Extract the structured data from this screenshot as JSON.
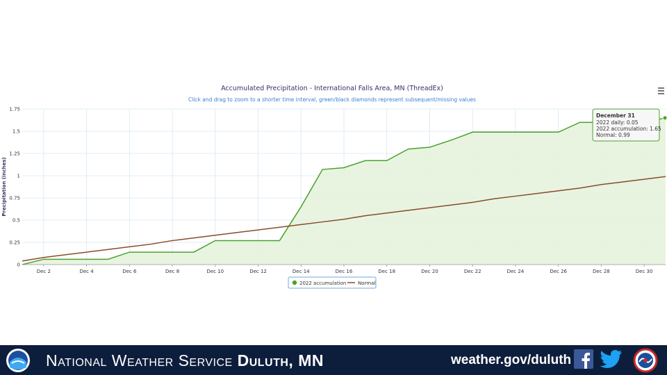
{
  "chart_data": {
    "type": "line",
    "title": "Accumulated Precipitation - International Falls Area, MN (ThreadEx)",
    "subtitle": "Click and drag to zoom to a shorter time interval, green/black diamonds represent subsequent/missing values",
    "ylabel": "Precipitation (inches)",
    "xlabel": "",
    "xlim": [
      1,
      31
    ],
    "ylim": [
      0,
      1.75
    ],
    "yticks": [
      0,
      0.25,
      0.5,
      0.75,
      1,
      1.25,
      1.5,
      1.75
    ],
    "ytick_labels": [
      "0",
      "0.25",
      "0.5",
      "0.75",
      "1",
      "1.25",
      "1.5",
      "1.75"
    ],
    "xticks": [
      2,
      4,
      6,
      8,
      10,
      12,
      14,
      16,
      18,
      20,
      22,
      24,
      26,
      28,
      30
    ],
    "xtick_labels": [
      "Dec 2",
      "Dec 4",
      "Dec 6",
      "Dec 8",
      "Dec 10",
      "Dec 12",
      "Dec 14",
      "Dec 16",
      "Dec 18",
      "Dec 20",
      "Dec 22",
      "Dec 24",
      "Dec 26",
      "Dec 28",
      "Dec 30"
    ],
    "grid": true,
    "legend_position": "bottom-center",
    "series": [
      {
        "name": "2022 accumulation",
        "color": "#4aa12e",
        "fill": "#e6f3dd",
        "x": [
          1,
          2,
          3,
          4,
          5,
          6,
          7,
          8,
          9,
          10,
          11,
          12,
          13,
          14,
          15,
          16,
          17,
          18,
          19,
          20,
          21,
          22,
          23,
          24,
          25,
          26,
          27,
          28,
          29,
          30,
          31
        ],
        "y": [
          0,
          0.06,
          0.06,
          0.06,
          0.06,
          0.14,
          0.14,
          0.14,
          0.14,
          0.27,
          0.27,
          0.27,
          0.27,
          0.65,
          1.07,
          1.09,
          1.17,
          1.17,
          1.3,
          1.32,
          1.4,
          1.49,
          1.49,
          1.49,
          1.49,
          1.49,
          1.6,
          1.6,
          1.6,
          1.6,
          1.65
        ]
      },
      {
        "name": "Normal",
        "color": "#8b4a2b",
        "x": [
          1,
          2,
          3,
          4,
          5,
          6,
          7,
          8,
          9,
          10,
          11,
          12,
          13,
          14,
          15,
          16,
          17,
          18,
          19,
          20,
          21,
          22,
          23,
          24,
          25,
          26,
          27,
          28,
          29,
          30,
          31
        ],
        "y": [
          0.04,
          0.08,
          0.11,
          0.14,
          0.17,
          0.2,
          0.23,
          0.27,
          0.3,
          0.33,
          0.36,
          0.39,
          0.42,
          0.45,
          0.48,
          0.51,
          0.55,
          0.58,
          0.61,
          0.64,
          0.67,
          0.7,
          0.74,
          0.77,
          0.8,
          0.83,
          0.86,
          0.9,
          0.93,
          0.96,
          0.99
        ]
      }
    ],
    "tooltip": {
      "title": "December 31",
      "lines": [
        "2022 daily: 0.05",
        "2022 accumulation: 1.65",
        "Normal: 0.99"
      ]
    }
  },
  "menu_icon": "hamburger-menu-icon",
  "footer": {
    "brand_prefix": "National Weather Service",
    "brand_location": "Duluth, MN",
    "url": "weather.gov/duluth",
    "bg_color": "#0d1e3c",
    "icons": [
      "noaa-logo",
      "nws-logo",
      "facebook-icon",
      "twitter-icon"
    ]
  }
}
